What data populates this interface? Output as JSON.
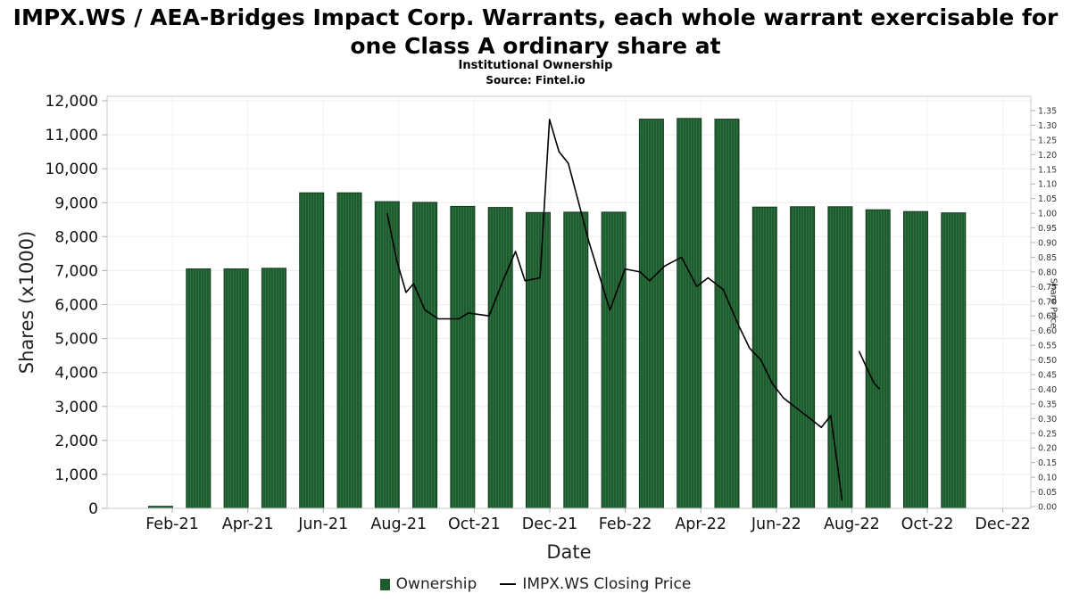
{
  "header": {
    "title_line1": "IMPX.WS / AEA-Bridges Impact Corp. Warrants, each whole warrant exercisable for",
    "title_line2": "one Class A ordinary share at",
    "subtitle": "Institutional Ownership",
    "source": "Source: Fintel.io"
  },
  "axis_labels": {
    "left": "Shares (x1000)",
    "bottom": "Date",
    "right": "Share Price"
  },
  "legend": {
    "ownership_label": "Ownership",
    "price_label": "IMPX.WS Closing Price"
  },
  "colors": {
    "bar_fill": "#1e5c30",
    "bar_stripe": "#2e7242",
    "bar_stroke": "#123a1d",
    "line": "#000000",
    "grid": "#ededed",
    "grid_vertical": "#f3f3f3",
    "frame": "#c9c9c9",
    "tick_mark": "#b0b0b0",
    "tick_text_dark": "#111111",
    "tick_text_small": "#333333"
  },
  "chart_data": {
    "type": "bar",
    "title": "Institutional Ownership",
    "subtitle": "Source: Fintel.io",
    "grid": true,
    "legend_position": "bottom",
    "categories": [
      "Feb-21",
      "Mar-21",
      "Apr-21",
      "May-21",
      "Jun-21",
      "Jul-21",
      "Aug-21",
      "Sep-21",
      "Oct-21",
      "Nov-21",
      "Dec-21",
      "Jan-22",
      "Feb-22",
      "Mar-22",
      "Apr-22",
      "May-22",
      "Jun-22",
      "Jul-22",
      "Aug-22",
      "Sep-22",
      "Oct-22",
      "Nov-22"
    ],
    "series": [
      {
        "name": "Ownership",
        "type": "bar",
        "yaxis": "left",
        "values": [
          60,
          7050,
          7050,
          7070,
          9290,
          9290,
          9030,
          9010,
          8890,
          8860,
          8710,
          8720,
          8720,
          11460,
          11480,
          11460,
          8870,
          8880,
          8880,
          8790,
          8740,
          8700
        ]
      },
      {
        "name": "IMPX.WS Closing Price",
        "type": "line",
        "yaxis": "right",
        "x_unit": "fractional month index, 0 = Feb-21",
        "segments": [
          [
            [
              6.0,
              1.0
            ],
            [
              6.25,
              0.84
            ],
            [
              6.5,
              0.73
            ],
            [
              6.7,
              0.76
            ],
            [
              7.0,
              0.67
            ],
            [
              7.35,
              0.64
            ],
            [
              7.9,
              0.64
            ],
            [
              8.15,
              0.66
            ],
            [
              8.7,
              0.65
            ],
            [
              9.1,
              0.78
            ],
            [
              9.4,
              0.87
            ],
            [
              9.65,
              0.77
            ],
            [
              10.05,
              0.78
            ],
            [
              10.3,
              1.32
            ],
            [
              10.55,
              1.21
            ],
            [
              10.8,
              1.17
            ],
            [
              11.35,
              0.9
            ],
            [
              11.9,
              0.67
            ],
            [
              12.3,
              0.81
            ],
            [
              12.7,
              0.8
            ],
            [
              12.95,
              0.77
            ],
            [
              13.35,
              0.82
            ],
            [
              13.8,
              0.85
            ],
            [
              14.2,
              0.75
            ],
            [
              14.5,
              0.78
            ],
            [
              14.9,
              0.74
            ],
            [
              15.3,
              0.62
            ],
            [
              15.6,
              0.54
            ],
            [
              15.9,
              0.5
            ],
            [
              16.2,
              0.42
            ],
            [
              16.5,
              0.37
            ],
            [
              16.9,
              0.33
            ],
            [
              17.2,
              0.3
            ],
            [
              17.5,
              0.27
            ],
            [
              17.75,
              0.31
            ],
            [
              17.95,
              0.12
            ],
            [
              18.05,
              0.02
            ]
          ],
          [
            [
              18.5,
              0.53
            ],
            [
              18.75,
              0.46
            ],
            [
              18.9,
              0.42
            ],
            [
              19.05,
              0.4
            ]
          ]
        ]
      }
    ],
    "left_axis": {
      "label": "Shares (x1000)",
      "min": 0,
      "max": 12000,
      "tick_step": 1000,
      "tick_labels": [
        "0",
        "1,000",
        "2,000",
        "3,000",
        "4,000",
        "5,000",
        "6,000",
        "7,000",
        "8,000",
        "9,000",
        "10,000",
        "11,000",
        "12,000"
      ]
    },
    "right_axis": {
      "label": "Share Price",
      "min": 0,
      "max": 1.35,
      "tick_step": 0.05,
      "tick_labels": [
        "0.00",
        "0.05",
        "0.10",
        "0.15",
        "0.20",
        "0.25",
        "0.30",
        "0.35",
        "0.40",
        "0.45",
        "0.50",
        "0.55",
        "0.60",
        "0.65",
        "0.70",
        "0.75",
        "0.80",
        "0.85",
        "0.90",
        "0.95",
        "1.00",
        "1.05",
        "1.10",
        "1.15",
        "1.20",
        "1.25",
        "1.30",
        "1.35"
      ]
    },
    "x_axis": {
      "label": "Date",
      "tick_labels": [
        "Feb-21",
        "Apr-21",
        "Jun-21",
        "Aug-21",
        "Oct-21",
        "Dec-21",
        "Feb-22",
        "Apr-22",
        "Jun-22",
        "Aug-22",
        "Oct-22",
        "Dec-22"
      ]
    }
  }
}
